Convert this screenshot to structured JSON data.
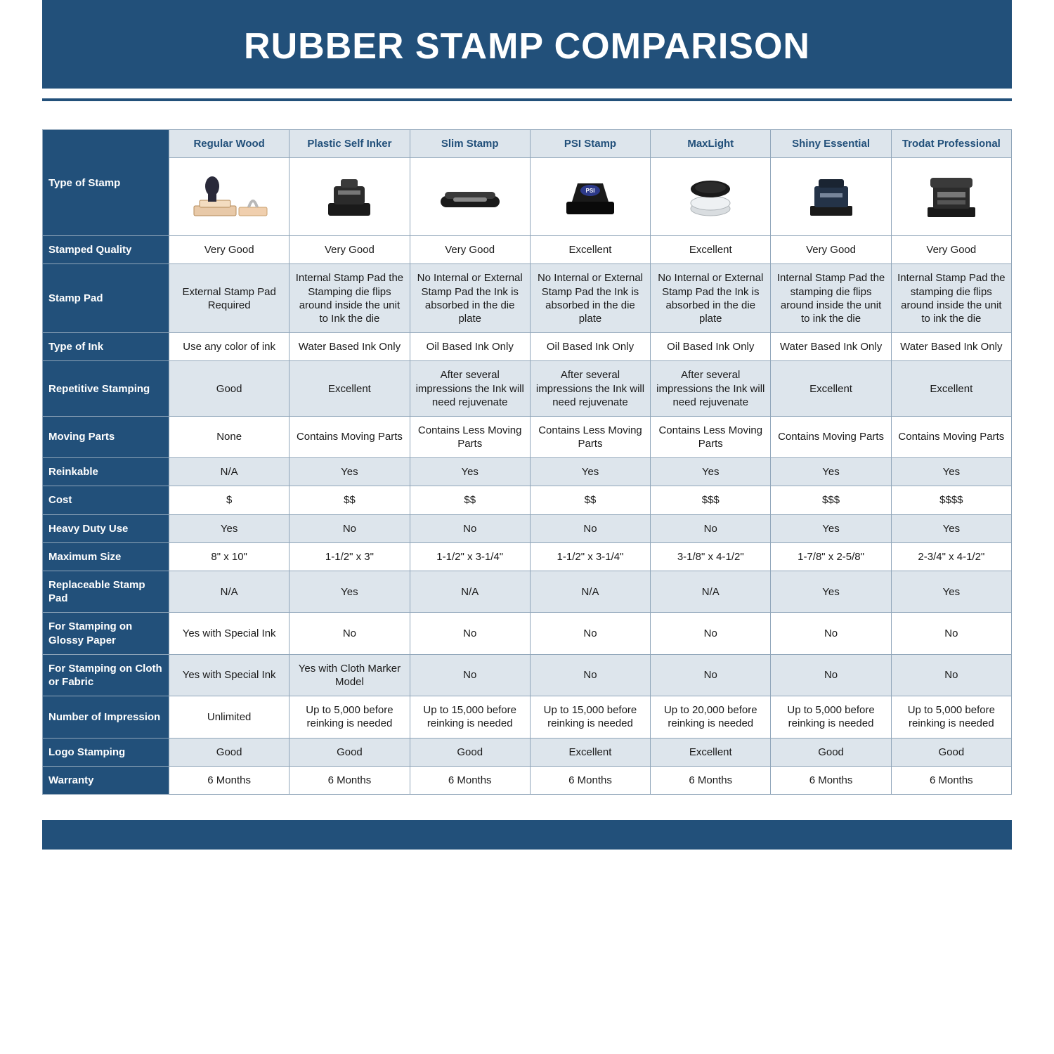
{
  "colors": {
    "brand": "#22507a",
    "band": "#dde5ec",
    "border": "#8fa5b9",
    "text": "#1a1a1a",
    "white": "#ffffff"
  },
  "title": "RUBBER STAMP COMPARISON",
  "columns": [
    "Regular Wood",
    "Plastic Self Inker",
    "Slim Stamp",
    "PSI Stamp",
    "MaxLight",
    "Shiny Essential",
    "Trodat Professional"
  ],
  "type_of_stamp_label": "Type of Stamp",
  "rows": [
    {
      "label": "Stamped Quality",
      "band": "white",
      "cells": [
        "Very Good",
        "Very Good",
        "Very Good",
        "Excellent",
        "Excellent",
        "Very Good",
        "Very Good"
      ]
    },
    {
      "label": "Stamp Pad",
      "band": "alt",
      "cells": [
        "External Stamp Pad Required",
        "Internal Stamp Pad the Stamping die flips around inside the unit to Ink the die",
        "No Internal or External Stamp Pad the Ink is absorbed in the die plate",
        "No Internal or External Stamp Pad the Ink is absorbed in the die plate",
        "No Internal or External Stamp Pad the Ink is absorbed in the die plate",
        "Internal Stamp Pad the stamping die flips around inside the unit to ink the die",
        "Internal Stamp Pad the stamping die flips around inside the unit to ink the die"
      ]
    },
    {
      "label": "Type of Ink",
      "band": "white",
      "cells": [
        "Use any color of ink",
        "Water Based Ink Only",
        "Oil Based Ink Only",
        "Oil Based Ink Only",
        "Oil Based Ink Only",
        "Water Based Ink Only",
        "Water Based Ink Only"
      ]
    },
    {
      "label": "Repetitive Stamping",
      "band": "alt",
      "cells": [
        "Good",
        "Excellent",
        "After several impressions the Ink will need rejuvenate",
        "After several impressions the Ink will need rejuvenate",
        "After several impressions the Ink will need rejuvenate",
        "Excellent",
        "Excellent"
      ]
    },
    {
      "label": "Moving Parts",
      "band": "white",
      "cells": [
        "None",
        "Contains Moving Parts",
        "Contains Less Moving Parts",
        "Contains Less Moving Parts",
        "Contains Less Moving Parts",
        "Contains Moving Parts",
        "Contains Moving Parts"
      ]
    },
    {
      "label": "Reinkable",
      "band": "alt",
      "cells": [
        "N/A",
        "Yes",
        "Yes",
        "Yes",
        "Yes",
        "Yes",
        "Yes"
      ]
    },
    {
      "label": "Cost",
      "band": "white",
      "cells": [
        "$",
        "$$",
        "$$",
        "$$",
        "$$$",
        "$$$",
        "$$$$"
      ]
    },
    {
      "label": "Heavy Duty Use",
      "band": "alt",
      "cells": [
        "Yes",
        "No",
        "No",
        "No",
        "No",
        "Yes",
        "Yes"
      ]
    },
    {
      "label": "Maximum Size",
      "band": "white",
      "cells": [
        "8\" x 10\"",
        "1-1/2\" x 3\"",
        "1-1/2\" x 3-1/4\"",
        "1-1/2\" x 3-1/4\"",
        "3-1/8\" x 4-1/2\"",
        "1-7/8\" x 2-5/8\"",
        "2-3/4\" x 4-1/2\""
      ]
    },
    {
      "label": "Replaceable Stamp Pad",
      "band": "alt",
      "cells": [
        "N/A",
        "Yes",
        "N/A",
        "N/A",
        "N/A",
        "Yes",
        "Yes"
      ]
    },
    {
      "label": "For Stamping on Glossy Paper",
      "band": "white",
      "cells": [
        "Yes with Special Ink",
        "No",
        "No",
        "No",
        "No",
        "No",
        "No"
      ]
    },
    {
      "label": "For Stamping on Cloth or Fabric",
      "band": "alt",
      "cells": [
        "Yes with Special Ink",
        "Yes with Cloth Marker Model",
        "No",
        "No",
        "No",
        "No",
        "No"
      ]
    },
    {
      "label": "Number of Impression",
      "band": "white",
      "cells": [
        "Unlimited",
        "Up to 5,000 before reinking is needed",
        "Up to 15,000 before reinking is needed",
        "Up to 15,000 before reinking is needed",
        "Up to 20,000 before reinking is needed",
        "Up to 5,000 before reinking is needed",
        "Up to 5,000 before reinking is needed"
      ]
    },
    {
      "label": "Logo Stamping",
      "band": "alt",
      "cells": [
        "Good",
        "Good",
        "Good",
        "Excellent",
        "Excellent",
        "Good",
        "Good"
      ]
    },
    {
      "label": "Warranty",
      "band": "white",
      "cells": [
        "6 Months",
        "6 Months",
        "6 Months",
        "6 Months",
        "6 Months",
        "6 Months",
        "6 Months"
      ]
    }
  ],
  "icons": [
    "wood-stamp-icon",
    "self-inker-icon",
    "slim-stamp-icon",
    "psi-stamp-icon",
    "maxlight-stamp-icon",
    "shiny-essential-icon",
    "trodat-professional-icon"
  ]
}
